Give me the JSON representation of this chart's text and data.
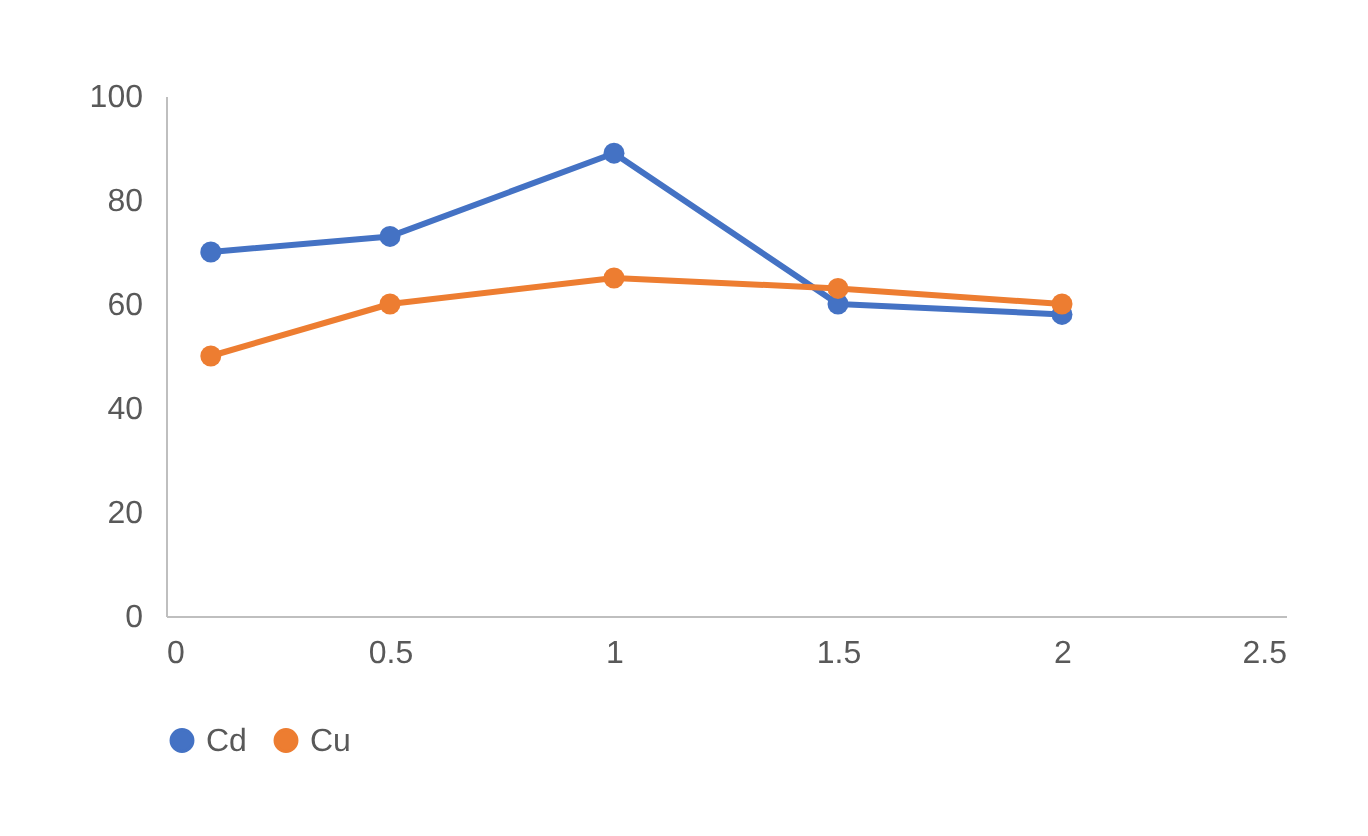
{
  "chart_data": {
    "type": "line",
    "x": [
      0.1,
      0.5,
      1,
      1.5,
      2
    ],
    "series": [
      {
        "name": "Cd",
        "color": "#4472c4",
        "values": [
          70,
          73,
          89,
          60,
          58
        ]
      },
      {
        "name": "Cu",
        "color": "#ed7d31",
        "values": [
          50,
          60,
          65,
          63,
          60
        ]
      }
    ],
    "xlim": [
      0,
      2.5
    ],
    "xticks": [
      0,
      0.5,
      1,
      1.5,
      2,
      2.5
    ],
    "ylim": [
      0,
      100
    ],
    "yticks": [
      0,
      20,
      40,
      60,
      80,
      100
    ],
    "grid": false,
    "legend": "bottom",
    "marker": "circle",
    "line_style": "solid"
  }
}
